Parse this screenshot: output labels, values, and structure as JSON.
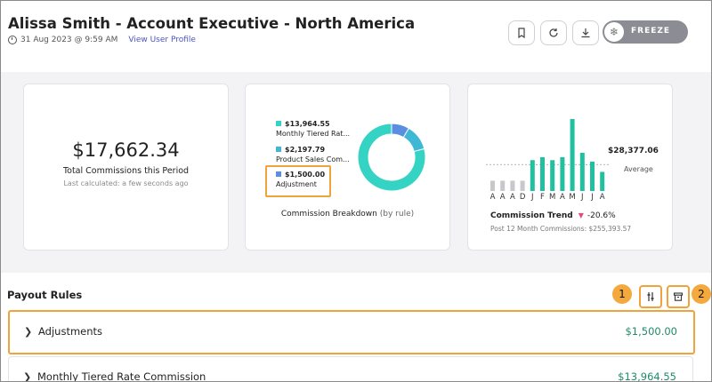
{
  "header": {
    "title": "Alissa Smith - Account Executive - North America",
    "timestamp": "31 Aug 2023 @ 9:59 AM",
    "profile_link": "View User Profile",
    "freeze_label": "FREEZE"
  },
  "summary": {
    "total_amount": "$17,662.34",
    "total_label": "Total Commissions this Period",
    "last_calculated": "Last calculated: a few seconds ago"
  },
  "breakdown": {
    "legend": [
      {
        "amount": "$13,964.55",
        "name": "Monthly Tiered Rat...",
        "color": "#34d3c3"
      },
      {
        "amount": "$2,197.79",
        "name": "Product Sales Com...",
        "color": "#3fb8d6"
      },
      {
        "amount": "$1,500.00",
        "name": "Adjustment",
        "color": "#5b8de0"
      }
    ],
    "label": "Commission Breakdown",
    "label_suffix": "(by rule)"
  },
  "trend": {
    "value": "$28,377.06",
    "avg_label": "Average",
    "months": [
      "A",
      "A",
      "A",
      "D",
      "J",
      "F",
      "M",
      "A",
      "M",
      "J",
      "J",
      "A"
    ],
    "label": "Commission Trend",
    "change": "-20.6%",
    "sub": "Post 12 Month Commissions: $255,393.57"
  },
  "chart_data": [
    {
      "type": "pie",
      "title": "Commission Breakdown",
      "categories": [
        "Monthly Tiered Rat...",
        "Product Sales Com...",
        "Adjustment"
      ],
      "values": [
        13964.55,
        2197.79,
        1500.0
      ],
      "colors": [
        "#34d3c3",
        "#3fb8d6",
        "#5b8de0"
      ]
    },
    {
      "type": "bar",
      "title": "Commission Trend",
      "categories": [
        "A",
        "A",
        "A",
        "D",
        "J",
        "F",
        "M",
        "A",
        "M",
        "J",
        "J",
        "A"
      ],
      "values": [
        7000,
        7000,
        7000,
        7000,
        21000,
        23000,
        21000,
        23000,
        49000,
        26000,
        20000,
        13000
      ],
      "colors": [
        "#c8c8cc",
        "#c8c8cc",
        "#c8c8cc",
        "#c8c8cc",
        "#22bfa0",
        "#22bfa0",
        "#22bfa0",
        "#22bfa0",
        "#22bfa0",
        "#22bfa0",
        "#22bfa0",
        "#22bfa0"
      ],
      "average": 18000,
      "ylim": [
        0,
        52000
      ]
    }
  ],
  "payout": {
    "title": "Payout Rules",
    "callouts": [
      "1",
      "2"
    ],
    "rules": [
      {
        "name": "Adjustments",
        "amount": "$1,500.00"
      },
      {
        "name": "Monthly Tiered Rate Commission",
        "amount": "$13,964.55"
      }
    ]
  },
  "icons": {
    "toolbar": [
      "bookmark-icon",
      "refresh-icon",
      "download-icon",
      "snowflake-icon"
    ],
    "payout": [
      "filter-sliders-icon",
      "archive-icon"
    ]
  },
  "colors": {
    "accent_teal": "#22bfa0",
    "amount_green": "#1f8a6a",
    "highlight_orange": "#f0a33d",
    "link_blue": "#4a55c9"
  }
}
